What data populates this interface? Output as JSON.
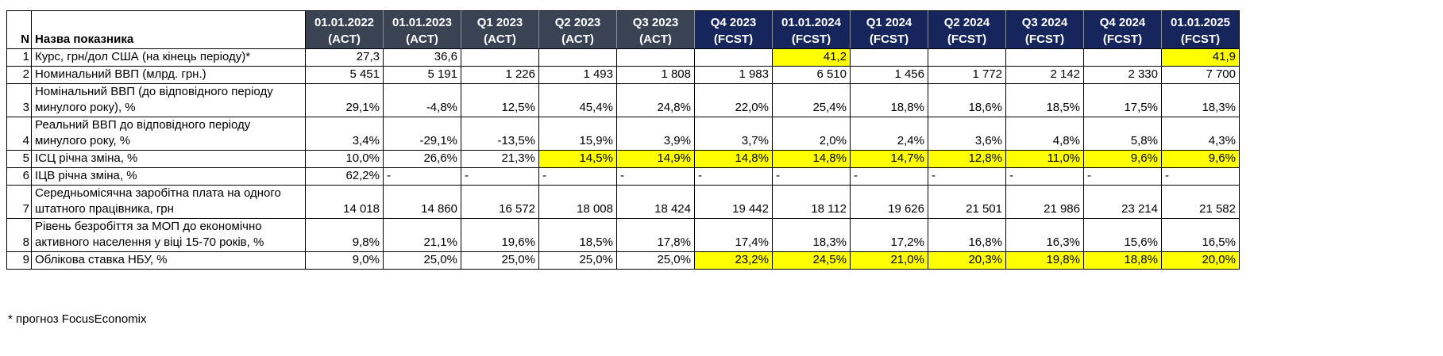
{
  "sheet": {
    "corner": {
      "number_header": "N",
      "name_header": "Назва показника"
    },
    "columns": [
      {
        "period": "01.01.2022",
        "status": "(ACT)",
        "group": "act"
      },
      {
        "period": "01.01.2023",
        "status": "(ACT)",
        "group": "act"
      },
      {
        "period": "Q1 2023",
        "status": "(ACT)",
        "group": "act"
      },
      {
        "period": "Q2 2023",
        "status": "(ACT)",
        "group": "act"
      },
      {
        "period": "Q3 2023",
        "status": "(ACT)",
        "group": "act"
      },
      {
        "period": "Q4 2023",
        "status": "(FCST)",
        "group": "fcst"
      },
      {
        "period": "01.01.2024",
        "status": "(FCST)",
        "group": "fcst"
      },
      {
        "period": "Q1 2024",
        "status": "(FCST)",
        "group": "fcst"
      },
      {
        "period": "Q2 2024",
        "status": "(FCST)",
        "group": "fcst"
      },
      {
        "period": "Q3 2024",
        "status": "(FCST)",
        "group": "fcst"
      },
      {
        "period": "Q4 2024",
        "status": "(FCST)",
        "group": "fcst"
      },
      {
        "period": "01.01.2025",
        "status": "(FCST)",
        "group": "fcst"
      }
    ],
    "rows": [
      {
        "n": "1",
        "label": "Курс, грн/дол США (на кінець періоду)*",
        "values": [
          "27,3",
          "36,6",
          "",
          "",
          "",
          "",
          "41,2",
          "",
          "",
          "",
          "",
          "41,9"
        ],
        "highlighted": [
          6,
          11
        ]
      },
      {
        "n": "2",
        "label": "Номинальний ВВП (млрд. грн.)",
        "values": [
          "5 451",
          "5 191",
          "1 226",
          "1 493",
          "1 808",
          "1 983",
          "6 510",
          "1 456",
          "1 772",
          "2 142",
          "2 330",
          "7 700"
        ],
        "highlighted": []
      },
      {
        "n": "3",
        "label": "Номінальний ВВП (до відповідного періоду минулого року), %",
        "values": [
          "29,1%",
          "-4,8%",
          "12,5%",
          "45,4%",
          "24,8%",
          "22,0%",
          "25,4%",
          "18,8%",
          "18,6%",
          "18,5%",
          "17,5%",
          "18,3%"
        ],
        "highlighted": []
      },
      {
        "n": "4",
        "label": "Реальний ВВП до відповідного періоду минулого року, %",
        "values": [
          "3,4%",
          "-29,1%",
          "-13,5%",
          "15,9%",
          "3,9%",
          "3,7%",
          "2,0%",
          "2,4%",
          "3,6%",
          "4,8%",
          "5,8%",
          "4,3%"
        ],
        "highlighted": []
      },
      {
        "n": "5",
        "label": "ІСЦ річна зміна, %",
        "values": [
          "10,0%",
          "26,6%",
          "21,3%",
          "14,5%",
          "14,9%",
          "14,8%",
          "14,8%",
          "14,7%",
          "12,8%",
          "11,0%",
          "9,6%",
          "9,6%"
        ],
        "highlighted": [
          3,
          4,
          5,
          6,
          7,
          8,
          9,
          10,
          11
        ]
      },
      {
        "n": "6",
        "label": "ІЦВ річна зміна, %",
        "values": [
          "62,2%",
          "-",
          "-",
          "-",
          "-",
          "-",
          "-",
          "-",
          "-",
          "-",
          "-",
          "-"
        ],
        "highlighted": []
      },
      {
        "n": "7",
        "label": "Середньомісячна заробітна плата на одного штатного працівника, грн",
        "values": [
          "14 018",
          "14 860",
          "16 572",
          "18 008",
          "18 424",
          "19 442",
          "18 112",
          "19 626",
          "21 501",
          "21 986",
          "23 214",
          "21 582"
        ],
        "highlighted": []
      },
      {
        "n": "8",
        "label": "Рівень безробіття за МОП до економічно активного населення у віці 15-70 років, %",
        "values": [
          "9,8%",
          "21,1%",
          "19,6%",
          "18,5%",
          "17,8%",
          "17,4%",
          "18,3%",
          "17,2%",
          "16,8%",
          "16,3%",
          "15,6%",
          "16,5%"
        ],
        "highlighted": []
      },
      {
        "n": "9",
        "label": "Облікова ставка НБУ, %",
        "values": [
          "9,0%",
          "25,0%",
          "25,0%",
          "25,0%",
          "25,0%",
          "23,2%",
          "24,5%",
          "21,0%",
          "20,3%",
          "19,8%",
          "18,8%",
          "20,0%"
        ],
        "highlighted": [
          5,
          6,
          7,
          8,
          9,
          10,
          11
        ]
      }
    ],
    "footnote": "* прогноз FocusEconomix"
  },
  "colors": {
    "act_header_bg": "#3a4354",
    "fcst_header_bg": "#16265c",
    "header_text": "#ffffff",
    "highlight_bg": "#ffff00"
  }
}
